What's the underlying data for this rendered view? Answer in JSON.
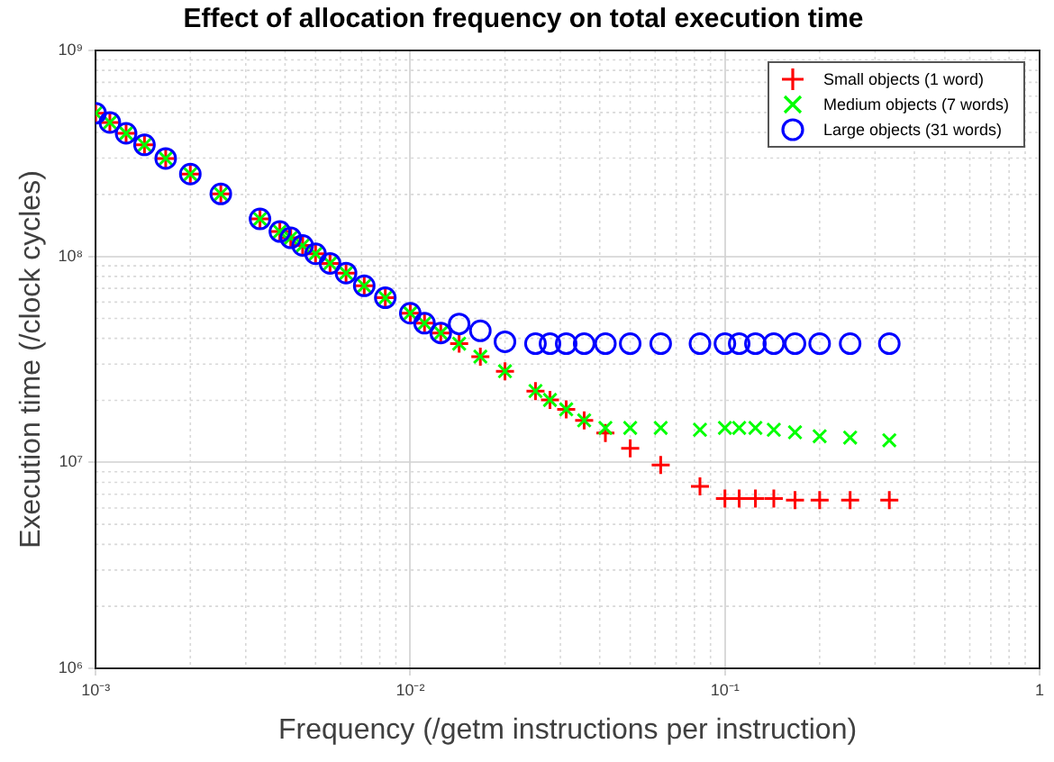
{
  "chart_data": {
    "type": "scatter",
    "title": "Effect of allocation frequency on total execution time",
    "xlabel": "Frequency (/getm instructions per instruction)",
    "ylabel": "Execution time (/clock cycles)",
    "log": "xy",
    "grid": true,
    "legend": "top right",
    "xlim": [
      0.001,
      1
    ],
    "ylim": [
      1000000,
      1000000000
    ],
    "xticks": [
      {
        "value": 0.001,
        "label": "10⁻³"
      },
      {
        "value": 0.01,
        "label": "10⁻²"
      },
      {
        "value": 0.1,
        "label": "10⁻¹"
      },
      {
        "value": 1,
        "label": "1"
      }
    ],
    "yticks": [
      {
        "value": 1000000,
        "label": "10⁶"
      },
      {
        "value": 10000000,
        "label": "10⁷"
      },
      {
        "value": 100000000,
        "label": "10⁸"
      },
      {
        "value": 1000000000,
        "label": "10⁹"
      }
    ],
    "x": [
      0.001,
      0.00111,
      0.00125,
      0.00143,
      0.00167,
      0.002,
      0.0025,
      0.00333,
      0.00385,
      0.00417,
      0.00455,
      0.005,
      0.00556,
      0.00625,
      0.00714,
      0.00833,
      0.01,
      0.0111,
      0.0125,
      0.0143,
      0.0167,
      0.02,
      0.025,
      0.0278,
      0.0313,
      0.0357,
      0.0417,
      0.05,
      0.0625,
      0.0833,
      0.1,
      0.111,
      0.125,
      0.143,
      0.167,
      0.2,
      0.25,
      0.333
    ],
    "series": [
      {
        "name": "Small objects (1 word)",
        "color": "#ff0000",
        "marker": "cross",
        "values": [
          496000000,
          447000000,
          396000000,
          348000000,
          299000000,
          251000000,
          201000000,
          152000000,
          132000000,
          123000000,
          113000000,
          103000000,
          92500000,
          83000000,
          72000000,
          63000000,
          53000000,
          47400000,
          42500000,
          37700000,
          32600000,
          27700000,
          22200000,
          20100000,
          18100000,
          16000000,
          13900000,
          11700000,
          9700000,
          7650000,
          6670000,
          6670000,
          6670000,
          6670000,
          6550000,
          6550000,
          6550000,
          6550000
        ]
      },
      {
        "name": "Medium objects (7 words)",
        "color": "#00ff00",
        "marker": "x",
        "values": [
          496000000,
          447000000,
          396000000,
          348000000,
          299000000,
          251000000,
          201000000,
          152000000,
          132000000,
          123000000,
          113000000,
          103000000,
          92500000,
          83000000,
          72000000,
          63000000,
          53000000,
          47400000,
          42500000,
          37700000,
          32600000,
          27700000,
          22200000,
          20100000,
          18100000,
          16000000,
          14700000,
          14700000,
          14700000,
          14400000,
          14700000,
          14700000,
          14700000,
          14400000,
          14000000,
          13400000,
          13200000,
          12800000
        ]
      },
      {
        "name": "Large objects (31 words)",
        "color": "#0000ff",
        "marker": "circle",
        "values": [
          496000000,
          447000000,
          396000000,
          348000000,
          299000000,
          251000000,
          201000000,
          152000000,
          132000000,
          123000000,
          113000000,
          103000000,
          92500000,
          83000000,
          72000000,
          63000000,
          53000000,
          47400000,
          42500000,
          47000000,
          43500000,
          38500000,
          37700000,
          37700000,
          37700000,
          37700000,
          37700000,
          37700000,
          37700000,
          37700000,
          37700000,
          37700000,
          37700000,
          37700000,
          37700000,
          37700000,
          37700000,
          37700000
        ]
      }
    ]
  }
}
